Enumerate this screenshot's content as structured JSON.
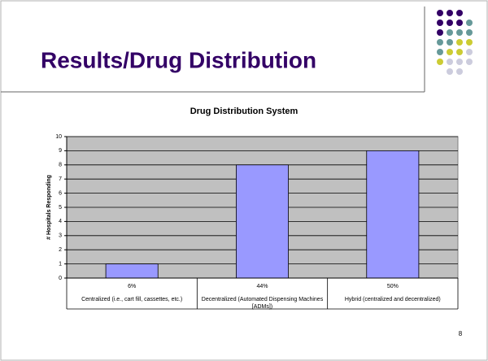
{
  "slide_title": "Results/Drug Distribution",
  "page_number": "8",
  "chart_data": {
    "type": "bar",
    "title": "Drug Distribution System",
    "y_label": "# Hospitals Responding",
    "categories": [
      "Centralized (i.e., cart fill, cassettes, etc.)",
      "Decentralized (Automated Dispensing Machines [ADMs])",
      "Hybrid (centralized and decentralized)"
    ],
    "category_percent_labels": [
      "6%",
      "44%",
      "50%"
    ],
    "values": [
      1,
      8,
      9
    ],
    "color": "#9999ff",
    "ylim": [
      0,
      10
    ],
    "yticks": [
      0,
      1,
      2,
      3,
      4,
      5,
      6,
      7,
      8,
      9,
      10
    ],
    "grid": true
  }
}
